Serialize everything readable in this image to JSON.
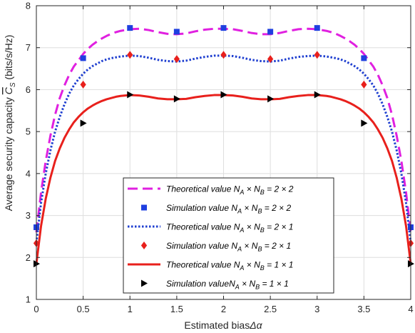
{
  "chart_data": {
    "type": "line",
    "xlabel": {
      "prefix": "Estimated bias",
      "symbol": "Δα"
    },
    "ylabel": {
      "prefix": "Average security capacity",
      "symbol": "C",
      "subscript": "S",
      "unit": "(bits/s/Hz)"
    },
    "xlim": [
      0,
      4
    ],
    "ylim": [
      1,
      8
    ],
    "xticks": [
      0,
      0.5,
      1,
      1.5,
      2,
      2.5,
      3,
      3.5,
      4
    ],
    "xtick_labels": [
      "0",
      "0.5",
      "1",
      "1.5",
      "2",
      "2.5",
      "3",
      "3.5",
      "4"
    ],
    "yticks": [
      1,
      2,
      3,
      4,
      5,
      6,
      7,
      8
    ],
    "ytick_labels": [
      "1",
      "2",
      "3",
      "4",
      "5",
      "6",
      "7",
      "8"
    ],
    "grid": true,
    "legend_position": "bottom-center",
    "x": [
      0,
      0.5,
      1,
      1.5,
      2,
      2.5,
      3,
      3.5,
      4
    ],
    "series": [
      {
        "key": "theo22",
        "kind": "line",
        "label": {
          "pre": "Theoretical value ",
          "na": "N",
          "na_sub": "A",
          "mid": " × ",
          "nb": "N",
          "nb_sub": "B",
          "post": " = 2 × 2"
        },
        "color": "#e020e0",
        "dash": "14,7",
        "width": 3,
        "x": [
          0,
          0.05,
          0.1,
          0.15,
          0.2,
          0.25,
          0.3,
          0.35,
          0.4,
          0.45,
          0.5,
          0.55,
          0.6,
          0.65,
          0.7,
          0.75,
          0.8,
          0.85,
          0.9,
          0.95,
          1,
          1.1,
          1.2,
          1.3,
          1.4,
          1.5,
          1.6,
          1.7,
          1.8,
          1.9,
          2,
          2.1,
          2.2,
          2.3,
          2.4,
          2.5,
          2.6,
          2.7,
          2.8,
          2.9,
          3,
          3.05,
          3.1,
          3.15,
          3.2,
          3.25,
          3.3,
          3.35,
          3.4,
          3.45,
          3.5,
          3.55,
          3.6,
          3.65,
          3.7,
          3.75,
          3.8,
          3.85,
          3.9,
          3.95,
          4
        ],
        "y": [
          2.6,
          3.55,
          4.3,
          4.9,
          5.4,
          5.8,
          6.1,
          6.35,
          6.55,
          6.7,
          6.85,
          6.97,
          7.07,
          7.15,
          7.22,
          7.28,
          7.33,
          7.37,
          7.4,
          7.42,
          7.44,
          7.45,
          7.42,
          7.37,
          7.33,
          7.32,
          7.34,
          7.39,
          7.43,
          7.45,
          7.45,
          7.44,
          7.4,
          7.35,
          7.32,
          7.32,
          7.35,
          7.4,
          7.44,
          7.45,
          7.44,
          7.42,
          7.4,
          7.37,
          7.33,
          7.28,
          7.22,
          7.15,
          7.07,
          6.97,
          6.85,
          6.7,
          6.55,
          6.35,
          6.1,
          5.8,
          5.4,
          4.9,
          4.3,
          3.55,
          2.6
        ]
      },
      {
        "key": "sim22",
        "kind": "marker",
        "marker": "square",
        "label": {
          "pre": "Simulation value ",
          "na": "N",
          "na_sub": "A",
          "mid": " × ",
          "nb": "N",
          "nb_sub": "B",
          "post": " = 2 × 2"
        },
        "color": "#1f3fe0",
        "values": [
          2.72,
          6.75,
          7.47,
          7.38,
          7.47,
          7.38,
          7.47,
          6.75,
          2.72
        ]
      },
      {
        "key": "theo21",
        "kind": "line",
        "label": {
          "pre": "Theoretical value ",
          "na": "N",
          "na_sub": "A",
          "mid": " × ",
          "nb": "N",
          "nb_sub": "B",
          "post": " = 2 × 1"
        },
        "color": "#1f3fd0",
        "dash": "2.5,2.5",
        "width": 3,
        "x": [
          0,
          0.05,
          0.1,
          0.15,
          0.2,
          0.25,
          0.3,
          0.35,
          0.4,
          0.45,
          0.5,
          0.55,
          0.6,
          0.65,
          0.7,
          0.75,
          0.8,
          0.85,
          0.9,
          0.95,
          1,
          1.1,
          1.2,
          1.3,
          1.4,
          1.5,
          1.6,
          1.7,
          1.8,
          1.9,
          2,
          2.1,
          2.2,
          2.3,
          2.4,
          2.5,
          2.6,
          2.7,
          2.8,
          2.9,
          3,
          3.05,
          3.1,
          3.15,
          3.2,
          3.25,
          3.3,
          3.35,
          3.4,
          3.45,
          3.5,
          3.55,
          3.6,
          3.65,
          3.7,
          3.75,
          3.8,
          3.85,
          3.9,
          3.95,
          4
        ],
        "y": [
          2.35,
          3.3,
          4.0,
          4.55,
          5.0,
          5.35,
          5.65,
          5.9,
          6.1,
          6.25,
          6.38,
          6.48,
          6.56,
          6.62,
          6.68,
          6.72,
          6.75,
          6.77,
          6.79,
          6.8,
          6.81,
          6.8,
          6.76,
          6.71,
          6.68,
          6.67,
          6.69,
          6.74,
          6.78,
          6.81,
          6.81,
          6.8,
          6.76,
          6.71,
          6.68,
          6.67,
          6.69,
          6.74,
          6.78,
          6.8,
          6.81,
          6.8,
          6.79,
          6.77,
          6.75,
          6.72,
          6.68,
          6.62,
          6.56,
          6.48,
          6.38,
          6.25,
          6.1,
          5.9,
          5.65,
          5.35,
          5.0,
          4.55,
          4.0,
          3.3,
          2.35
        ]
      },
      {
        "key": "sim21",
        "kind": "marker",
        "marker": "diamond",
        "label": {
          "pre": "Simulation value ",
          "na": "N",
          "na_sub": "A",
          "mid": " × ",
          "nb": "N",
          "nb_sub": "B",
          "post": " = 2 × 1"
        },
        "color": "#e8201c",
        "values": [
          2.34,
          6.12,
          6.83,
          6.73,
          6.83,
          6.73,
          6.83,
          6.12,
          2.34
        ]
      },
      {
        "key": "theo11",
        "kind": "line",
        "label": {
          "pre": "Theoretical value ",
          "na": "N",
          "na_sub": "A",
          "mid": " × ",
          "nb": "N",
          "nb_sub": "B",
          "post": " = 1 × 1"
        },
        "color": "#e8201c",
        "dash": "",
        "width": 3,
        "x": [
          0,
          0.05,
          0.1,
          0.15,
          0.2,
          0.25,
          0.3,
          0.35,
          0.4,
          0.45,
          0.5,
          0.55,
          0.6,
          0.65,
          0.7,
          0.75,
          0.8,
          0.85,
          0.9,
          0.95,
          1,
          1.1,
          1.2,
          1.3,
          1.4,
          1.5,
          1.6,
          1.7,
          1.8,
          1.9,
          2,
          2.1,
          2.2,
          2.3,
          2.4,
          2.5,
          2.6,
          2.7,
          2.8,
          2.9,
          3,
          3.05,
          3.1,
          3.15,
          3.2,
          3.25,
          3.3,
          3.35,
          3.4,
          3.45,
          3.5,
          3.55,
          3.6,
          3.65,
          3.7,
          3.75,
          3.8,
          3.85,
          3.9,
          3.95,
          4
        ],
        "y": [
          1.85,
          2.75,
          3.4,
          3.9,
          4.3,
          4.6,
          4.85,
          5.05,
          5.22,
          5.35,
          5.46,
          5.55,
          5.62,
          5.68,
          5.73,
          5.77,
          5.8,
          5.83,
          5.85,
          5.86,
          5.87,
          5.86,
          5.83,
          5.79,
          5.77,
          5.77,
          5.78,
          5.82,
          5.85,
          5.87,
          5.87,
          5.86,
          5.83,
          5.79,
          5.77,
          5.77,
          5.78,
          5.82,
          5.85,
          5.87,
          5.87,
          5.86,
          5.85,
          5.83,
          5.8,
          5.77,
          5.73,
          5.68,
          5.62,
          5.55,
          5.46,
          5.35,
          5.22,
          5.05,
          4.85,
          4.6,
          4.3,
          3.9,
          3.4,
          2.75,
          1.85
        ]
      },
      {
        "key": "sim11",
        "kind": "marker",
        "marker": "triangle-right",
        "label": {
          "pre": "Simulation value",
          "na": "N",
          "na_sub": "A",
          "mid": " × ",
          "nb": "N",
          "nb_sub": "B",
          "post": " = 1 × 1"
        },
        "color": "#000000",
        "values": [
          1.85,
          5.2,
          5.88,
          5.78,
          5.88,
          5.78,
          5.88,
          5.2,
          1.85
        ]
      }
    ]
  }
}
